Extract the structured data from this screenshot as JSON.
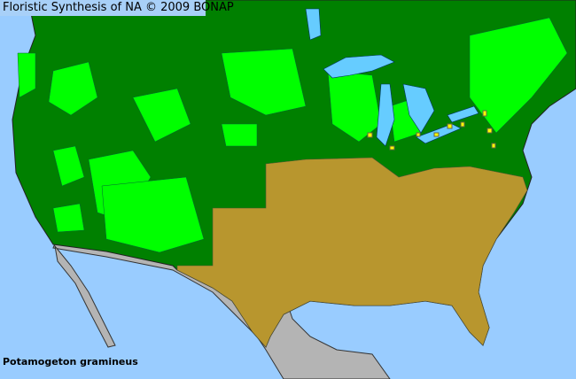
{
  "header": {
    "title": "Floristic Synthesis of NA © 2009 BONAP"
  },
  "map": {
    "species": "Potamogeton gramineus",
    "colors": {
      "ocean": "#99ccff",
      "present_state": "#008000",
      "present_county": "#00ff00",
      "absent": "#b8962e",
      "rare": "#ffff00",
      "outside_region": "#b4b4b4",
      "lakes": "#66ccff"
    }
  }
}
